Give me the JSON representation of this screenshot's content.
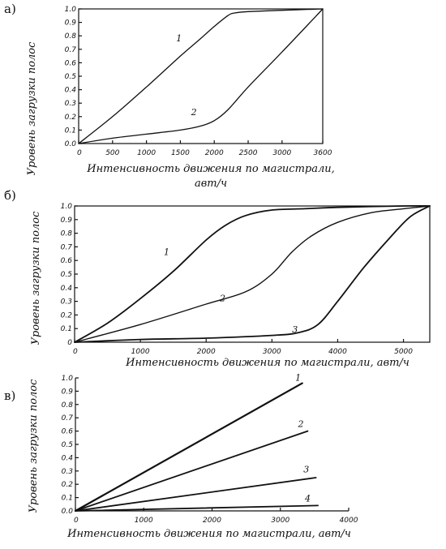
{
  "chart_data": [
    {
      "panel_label": "а)",
      "type": "line",
      "ylabel": "Уровень загрузки полос",
      "xlabel_lines": [
        "Интенсивность движения по магистрали,",
        "авт/ч"
      ],
      "xlim": [
        0,
        3600
      ],
      "ylim": [
        0,
        1.0
      ],
      "x_ticks": [
        0,
        500,
        1000,
        1500,
        2000,
        2500,
        3000,
        3600
      ],
      "x_tick_labels": [
        "0",
        "500",
        "1000",
        "1500",
        "2000",
        "2500",
        "3000",
        "3600"
      ],
      "y_ticks": [
        0,
        0.1,
        0.2,
        0.3,
        0.4,
        0.5,
        0.6,
        0.7,
        0.8,
        0.9,
        1.0
      ],
      "y_tick_labels": [
        "0.0",
        "0.1",
        "0.2",
        "0.3",
        "0.4",
        "0.5",
        "0.6",
        "0.7",
        "0.8",
        "0.9",
        "1.0"
      ],
      "series": [
        {
          "name": "1",
          "x": [
            0,
            500,
            1000,
            1500,
            1800,
            2000,
            2200,
            2300,
            2500,
            3000,
            3600
          ],
          "y": [
            0,
            0.2,
            0.42,
            0.65,
            0.78,
            0.87,
            0.95,
            0.97,
            0.98,
            0.99,
            1.0
          ]
        },
        {
          "name": "2",
          "x": [
            0,
            500,
            1000,
            1500,
            1800,
            2000,
            2200,
            2500,
            3000,
            3600
          ],
          "y": [
            0,
            0.04,
            0.07,
            0.1,
            0.13,
            0.17,
            0.25,
            0.42,
            0.68,
            1.0
          ]
        }
      ],
      "curve_labels": [
        {
          "text": "1",
          "x": 1480,
          "y": 0.76
        },
        {
          "text": "2",
          "x": 1700,
          "y": 0.21
        }
      ]
    },
    {
      "panel_label": "б)",
      "type": "line",
      "ylabel": "Уровень загрузки полос",
      "xlabel": "Интенсивность движения по магистрали, авт/ч",
      "xlim": [
        0,
        5400
      ],
      "ylim": [
        0,
        1.0
      ],
      "x_ticks": [
        0,
        1000,
        2000,
        3000,
        4000,
        5000
      ],
      "x_tick_labels": [
        "0",
        "1000",
        "2000",
        "3000",
        "4000",
        "5000"
      ],
      "y_ticks": [
        0,
        0.1,
        0.2,
        0.3,
        0.4,
        0.5,
        0.6,
        0.7,
        0.8,
        0.9,
        1.0
      ],
      "y_tick_labels": [
        "0",
        "0.1",
        "0.2",
        "0.3",
        "0.4",
        "0.5",
        "0.6",
        "0.7",
        "0.8",
        "0.9",
        "1.0"
      ],
      "series": [
        {
          "name": "1",
          "x": [
            0,
            500,
            1000,
            1500,
            2000,
            2300,
            2600,
            3000,
            3500,
            4000,
            5000,
            5400
          ],
          "y": [
            0,
            0.14,
            0.32,
            0.52,
            0.75,
            0.86,
            0.93,
            0.97,
            0.98,
            0.99,
            1.0,
            1.0
          ]
        },
        {
          "name": "2",
          "x": [
            0,
            1000,
            2000,
            2600,
            3000,
            3300,
            3600,
            4000,
            4500,
            5000,
            5400
          ],
          "y": [
            0,
            0.13,
            0.28,
            0.37,
            0.5,
            0.66,
            0.78,
            0.88,
            0.95,
            0.98,
            1.0
          ]
        },
        {
          "name": "3",
          "x": [
            0,
            1000,
            2000,
            3000,
            3400,
            3700,
            4000,
            4400,
            4800,
            5100,
            5400
          ],
          "y": [
            0,
            0.02,
            0.03,
            0.05,
            0.07,
            0.13,
            0.3,
            0.55,
            0.77,
            0.92,
            1.0
          ]
        }
      ],
      "curve_labels": [
        {
          "text": "1",
          "x": 1400,
          "y": 0.64
        },
        {
          "text": "2",
          "x": 2250,
          "y": 0.3
        },
        {
          "text": "3",
          "x": 3350,
          "y": 0.07
        }
      ]
    },
    {
      "panel_label": "в)",
      "type": "line",
      "ylabel": "Уровень загрузки полос",
      "xlabel": "Интенсивность движения по магистрали, авт/ч",
      "xlim": [
        0,
        4000
      ],
      "ylim": [
        0,
        1.0
      ],
      "x_ticks": [
        0,
        1000,
        2000,
        3000,
        4000
      ],
      "x_tick_labels": [
        "0",
        "1000",
        "2000",
        "3000",
        "4000"
      ],
      "y_ticks": [
        0,
        0.1,
        0.2,
        0.3,
        0.4,
        0.5,
        0.6,
        0.7,
        0.8,
        0.9,
        1.0
      ],
      "y_tick_labels": [
        "0.0",
        "0.1",
        "0.2",
        "0.3",
        "0.4",
        "0.5",
        "0.6",
        "0.7",
        "0.8",
        "0.9",
        "1.0"
      ],
      "series": [
        {
          "name": "1",
          "x": [
            0,
            3320
          ],
          "y": [
            0,
            0.96
          ]
        },
        {
          "name": "2",
          "x": [
            0,
            3400
          ],
          "y": [
            0,
            0.6
          ]
        },
        {
          "name": "3",
          "x": [
            0,
            3520
          ],
          "y": [
            0,
            0.25
          ]
        },
        {
          "name": "4",
          "x": [
            0,
            3550
          ],
          "y": [
            0,
            0.04
          ]
        }
      ],
      "curve_labels": [
        {
          "text": "1",
          "x": 3260,
          "y": 0.98
        },
        {
          "text": "2",
          "x": 3300,
          "y": 0.63
        },
        {
          "text": "3",
          "x": 3380,
          "y": 0.29
        },
        {
          "text": "4",
          "x": 3400,
          "y": 0.07
        }
      ]
    }
  ]
}
